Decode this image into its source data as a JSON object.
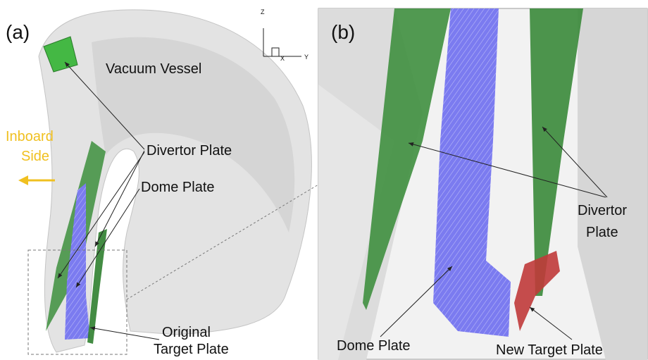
{
  "panels": [
    {
      "label": "(a)",
      "axes": {
        "z": "Z",
        "x": "X",
        "y": "Y"
      },
      "annotations": {
        "vacuum_vessel": "Vacuum Vessel",
        "inboard_side": [
          "Inboard",
          "Side"
        ],
        "divertor_plate": "Divertor Plate",
        "dome_plate": "Dome Plate",
        "original_target_plate": [
          "Original",
          "Target Plate"
        ]
      }
    },
    {
      "label": "(b)",
      "annotations": {
        "divertor_plate": [
          "Divertor",
          "Plate"
        ],
        "dome_plate": "Dome Plate",
        "new_target_plate": "New Target Plate"
      }
    }
  ]
}
